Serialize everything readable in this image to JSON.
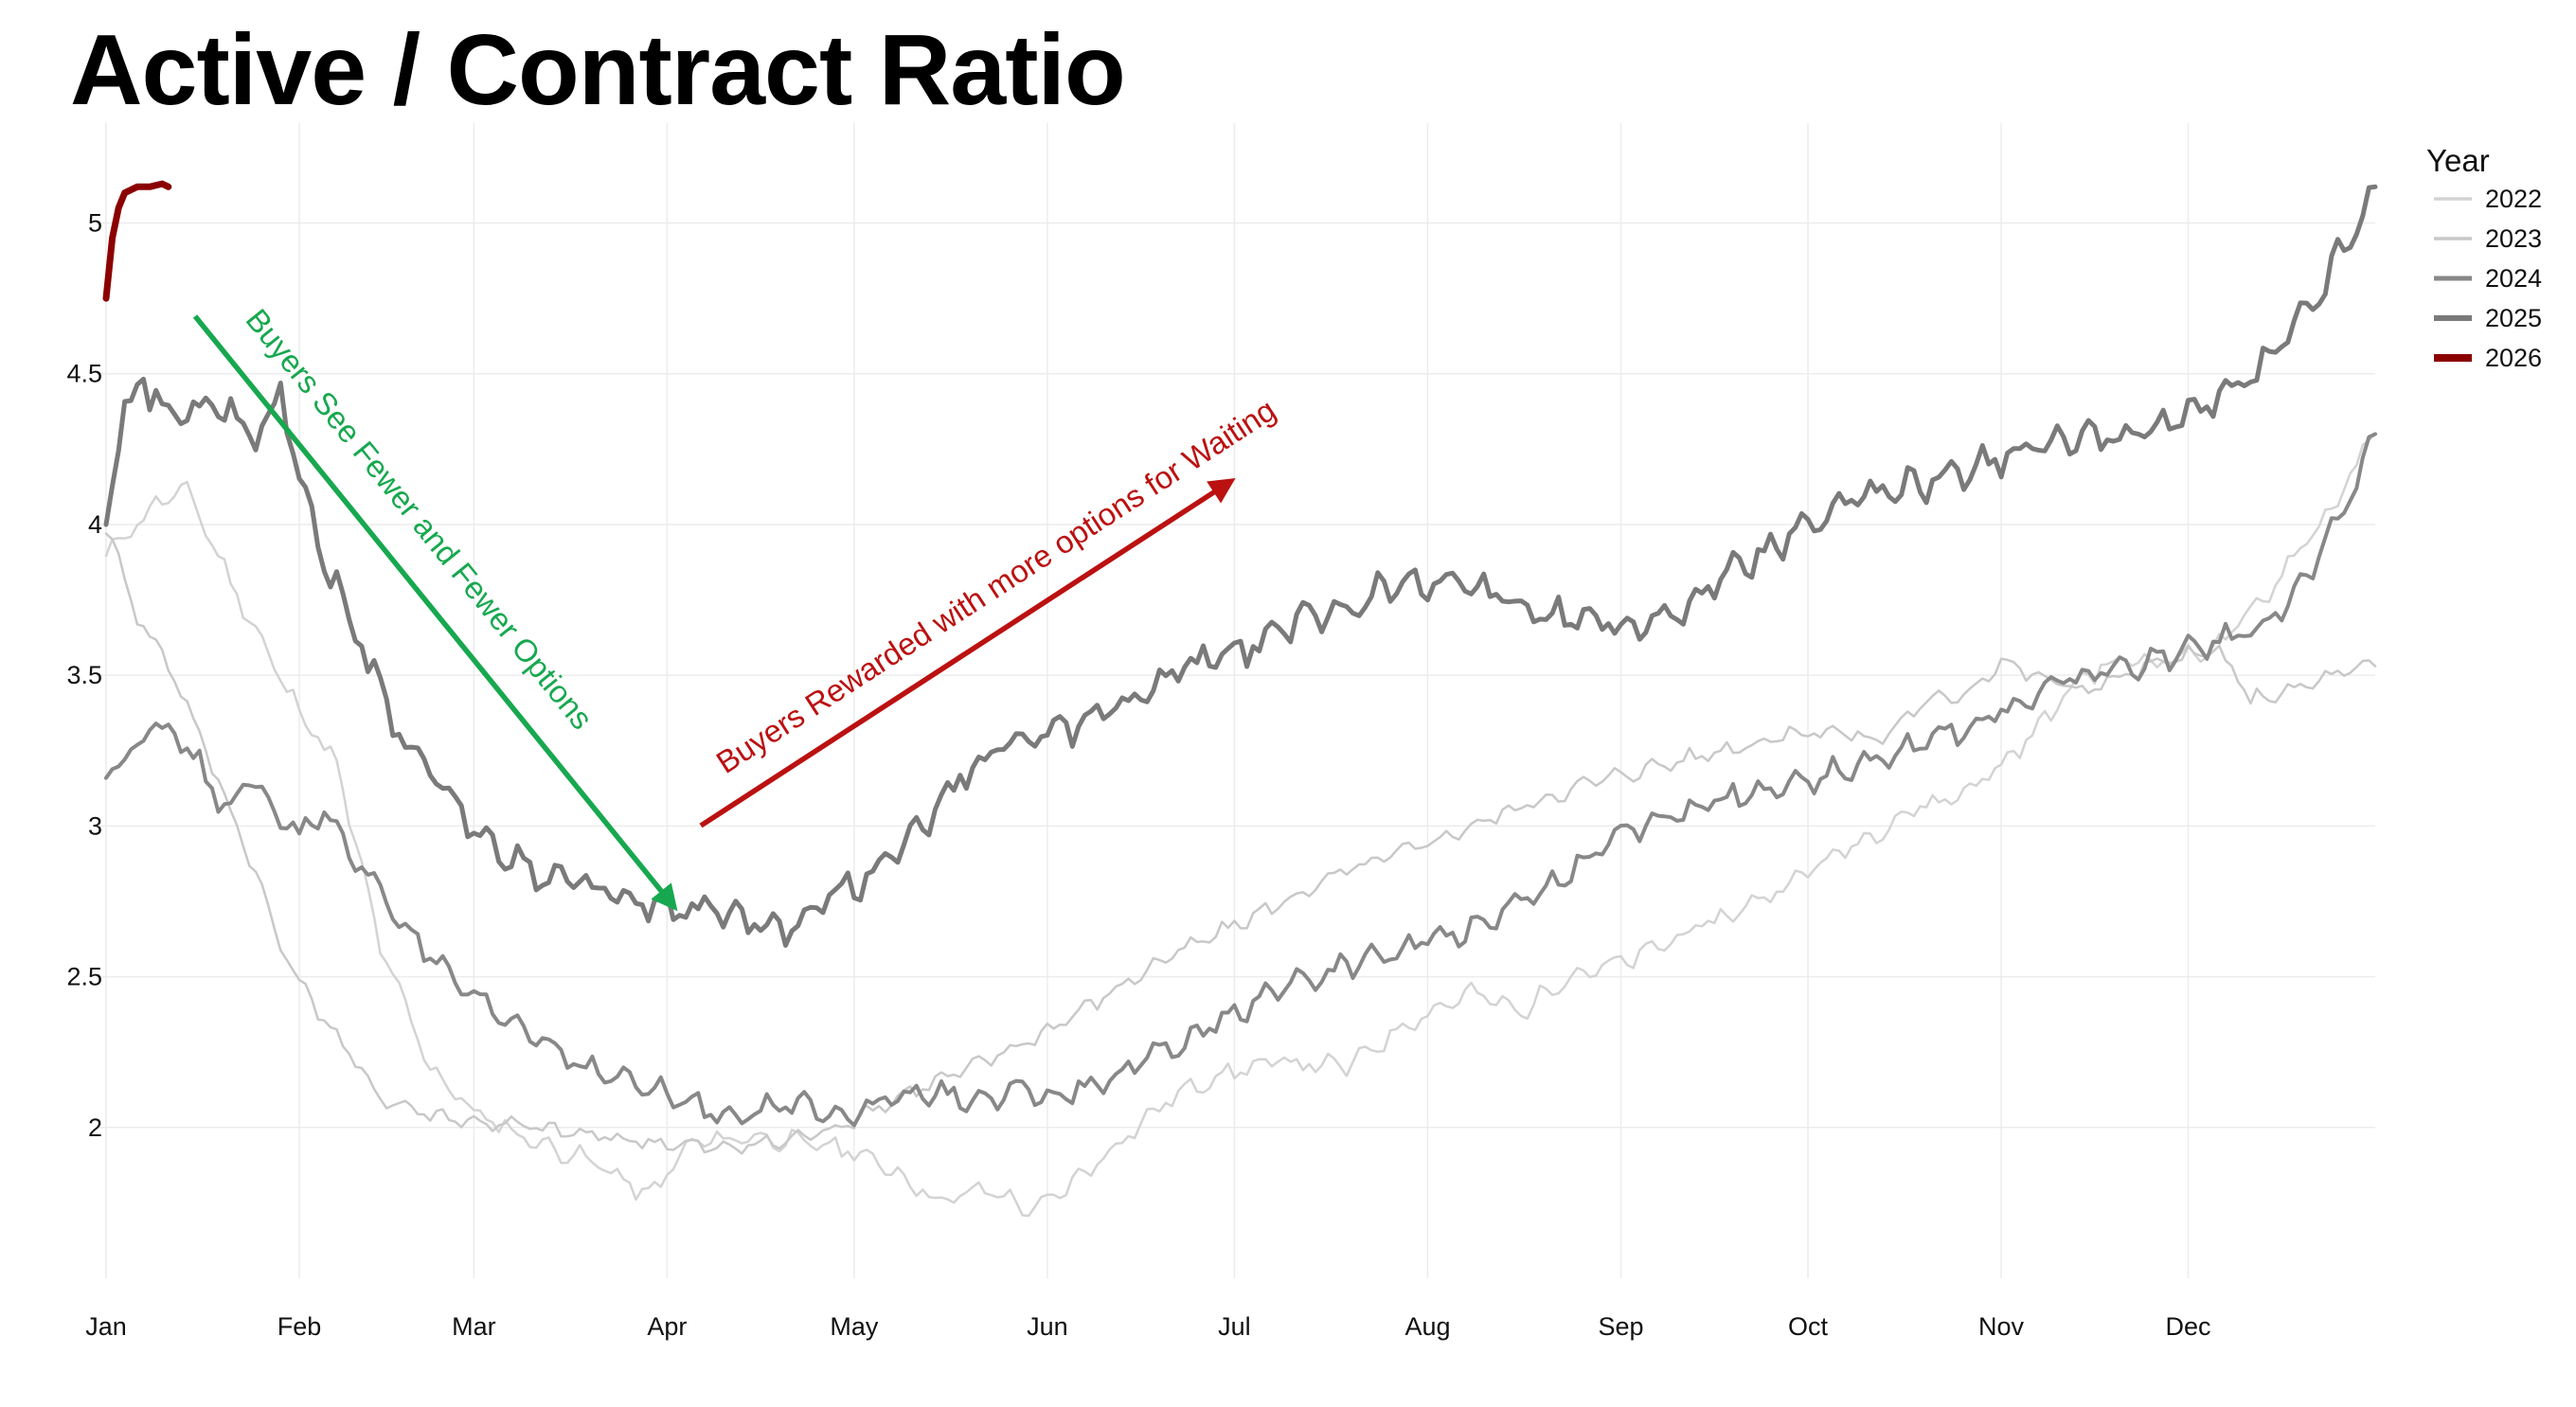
{
  "chart_data": {
    "type": "line",
    "title": "Active / Contract Ratio",
    "xlabel": "",
    "ylabel": "",
    "x_ticks": [
      "Jan",
      "Feb",
      "Mar",
      "Apr",
      "May",
      "Jun",
      "Jul",
      "Aug",
      "Sep",
      "Oct",
      "Nov",
      "Dec"
    ],
    "y_ticks": [
      2,
      2.5,
      3,
      3.5,
      4,
      4.5,
      5
    ],
    "y_tick_labels": [
      "2",
      "2.5",
      "3",
      "3.5",
      "4",
      "4.5",
      "5"
    ],
    "ylim": [
      1.5,
      5.3
    ],
    "x_unit": "day of year",
    "xlim": [
      1,
      365
    ],
    "grid": true,
    "legend_title": "Year",
    "legend_position": "right-top",
    "series": [
      {
        "name": "2022",
        "color": "#d3d3d3",
        "width": 2.5,
        "points": [
          [
            1,
            3.9
          ],
          [
            8,
            4.05
          ],
          [
            14,
            4.12
          ],
          [
            20,
            3.85
          ],
          [
            30,
            3.45
          ],
          [
            38,
            3.2
          ],
          [
            45,
            2.6
          ],
          [
            53,
            2.2
          ],
          [
            60,
            2.05
          ],
          [
            70,
            1.95
          ],
          [
            80,
            1.88
          ],
          [
            88,
            1.77
          ],
          [
            95,
            1.95
          ],
          [
            105,
            1.97
          ],
          [
            112,
            1.95
          ],
          [
            120,
            1.93
          ],
          [
            128,
            1.85
          ],
          [
            135,
            1.75
          ],
          [
            142,
            1.8
          ],
          [
            150,
            1.72
          ],
          [
            158,
            1.85
          ],
          [
            165,
            1.98
          ],
          [
            172,
            2.1
          ],
          [
            180,
            2.18
          ],
          [
            190,
            2.22
          ],
          [
            200,
            2.2
          ],
          [
            210,
            2.35
          ],
          [
            220,
            2.45
          ],
          [
            228,
            2.38
          ],
          [
            235,
            2.5
          ],
          [
            245,
            2.55
          ],
          [
            255,
            2.65
          ],
          [
            263,
            2.72
          ],
          [
            270,
            2.8
          ],
          [
            278,
            2.9
          ],
          [
            285,
            2.98
          ],
          [
            290,
            3.05
          ],
          [
            298,
            3.1
          ],
          [
            305,
            3.2
          ],
          [
            312,
            3.35
          ],
          [
            318,
            3.5
          ],
          [
            325,
            3.55
          ],
          [
            332,
            3.55
          ],
          [
            340,
            3.6
          ],
          [
            347,
            3.75
          ],
          [
            352,
            3.9
          ],
          [
            358,
            4.05
          ],
          [
            365,
            4.3
          ]
        ]
      },
      {
        "name": "2023",
        "color": "#c8c8c8",
        "width": 2.5,
        "points": [
          [
            1,
            4.0
          ],
          [
            6,
            3.7
          ],
          [
            12,
            3.5
          ],
          [
            18,
            3.2
          ],
          [
            24,
            2.9
          ],
          [
            30,
            2.55
          ],
          [
            38,
            2.3
          ],
          [
            45,
            2.1
          ],
          [
            52,
            2.05
          ],
          [
            60,
            2.02
          ],
          [
            70,
            2.0
          ],
          [
            80,
            1.97
          ],
          [
            90,
            1.95
          ],
          [
            100,
            1.93
          ],
          [
            108,
            1.95
          ],
          [
            115,
            1.98
          ],
          [
            120,
            2.02
          ],
          [
            130,
            2.12
          ],
          [
            140,
            2.2
          ],
          [
            150,
            2.3
          ],
          [
            160,
            2.42
          ],
          [
            170,
            2.55
          ],
          [
            180,
            2.65
          ],
          [
            190,
            2.75
          ],
          [
            200,
            2.85
          ],
          [
            210,
            2.92
          ],
          [
            220,
            3.0
          ],
          [
            230,
            3.08
          ],
          [
            240,
            3.15
          ],
          [
            250,
            3.2
          ],
          [
            260,
            3.25
          ],
          [
            270,
            3.3
          ],
          [
            278,
            3.32
          ],
          [
            285,
            3.28
          ],
          [
            292,
            3.4
          ],
          [
            300,
            3.45
          ],
          [
            305,
            3.55
          ],
          [
            310,
            3.5
          ],
          [
            318,
            3.45
          ],
          [
            325,
            3.5
          ],
          [
            332,
            3.55
          ],
          [
            340,
            3.58
          ],
          [
            345,
            3.42
          ],
          [
            352,
            3.45
          ],
          [
            358,
            3.5
          ],
          [
            365,
            3.53
          ]
        ]
      },
      {
        "name": "2024",
        "color": "#888888",
        "width": 4,
        "points": [
          [
            1,
            3.18
          ],
          [
            4,
            3.22
          ],
          [
            8,
            3.35
          ],
          [
            12,
            3.3
          ],
          [
            16,
            3.2
          ],
          [
            20,
            3.05
          ],
          [
            24,
            3.15
          ],
          [
            28,
            3.05
          ],
          [
            32,
            2.98
          ],
          [
            36,
            3.05
          ],
          [
            40,
            2.9
          ],
          [
            44,
            2.82
          ],
          [
            48,
            2.7
          ],
          [
            52,
            2.58
          ],
          [
            56,
            2.5
          ],
          [
            60,
            2.42
          ],
          [
            66,
            2.35
          ],
          [
            72,
            2.28
          ],
          [
            78,
            2.2
          ],
          [
            85,
            2.15
          ],
          [
            92,
            2.1
          ],
          [
            98,
            2.05
          ],
          [
            105,
            2.05
          ],
          [
            112,
            2.08
          ],
          [
            120,
            2.05
          ],
          [
            128,
            2.1
          ],
          [
            135,
            2.12
          ],
          [
            142,
            2.08
          ],
          [
            148,
            2.12
          ],
          [
            154,
            2.1
          ],
          [
            160,
            2.15
          ],
          [
            165,
            2.18
          ],
          [
            170,
            2.25
          ],
          [
            176,
            2.3
          ],
          [
            182,
            2.38
          ],
          [
            188,
            2.45
          ],
          [
            195,
            2.5
          ],
          [
            202,
            2.55
          ],
          [
            210,
            2.6
          ],
          [
            218,
            2.65
          ],
          [
            225,
            2.72
          ],
          [
            232,
            2.8
          ],
          [
            240,
            2.92
          ],
          [
            248,
            3.0
          ],
          [
            255,
            3.05
          ],
          [
            262,
            3.1
          ],
          [
            270,
            3.12
          ],
          [
            278,
            3.18
          ],
          [
            285,
            3.22
          ],
          [
            292,
            3.28
          ],
          [
            298,
            3.32
          ],
          [
            305,
            3.38
          ],
          [
            310,
            3.42
          ],
          [
            315,
            3.48
          ],
          [
            322,
            3.52
          ],
          [
            330,
            3.55
          ],
          [
            338,
            3.6
          ],
          [
            345,
            3.65
          ],
          [
            350,
            3.72
          ],
          [
            355,
            3.85
          ],
          [
            360,
            4.05
          ],
          [
            365,
            4.3
          ]
        ]
      },
      {
        "name": "2025",
        "color": "#7a7a7a",
        "width": 5,
        "points": [
          [
            1,
            4.05
          ],
          [
            4,
            4.35
          ],
          [
            7,
            4.48
          ],
          [
            10,
            4.38
          ],
          [
            14,
            4.35
          ],
          [
            18,
            4.4
          ],
          [
            22,
            4.35
          ],
          [
            26,
            4.3
          ],
          [
            29,
            4.45
          ],
          [
            32,
            4.18
          ],
          [
            35,
            3.95
          ],
          [
            38,
            3.8
          ],
          [
            42,
            3.6
          ],
          [
            46,
            3.4
          ],
          [
            50,
            3.25
          ],
          [
            54,
            3.15
          ],
          [
            58,
            3.05
          ],
          [
            62,
            2.95
          ],
          [
            66,
            2.9
          ],
          [
            70,
            2.85
          ],
          [
            74,
            2.82
          ],
          [
            78,
            2.8
          ],
          [
            82,
            2.78
          ],
          [
            86,
            2.75
          ],
          [
            90,
            2.73
          ],
          [
            94,
            2.72
          ],
          [
            98,
            2.72
          ],
          [
            102,
            2.7
          ],
          [
            106,
            2.68
          ],
          [
            110,
            2.65
          ],
          [
            114,
            2.72
          ],
          [
            118,
            2.78
          ],
          [
            122,
            2.82
          ],
          [
            126,
            2.88
          ],
          [
            130,
            2.95
          ],
          [
            134,
            3.05
          ],
          [
            138,
            3.15
          ],
          [
            142,
            3.22
          ],
          [
            146,
            3.28
          ],
          [
            150,
            3.3
          ],
          [
            154,
            3.32
          ],
          [
            158,
            3.35
          ],
          [
            162,
            3.38
          ],
          [
            166,
            3.42
          ],
          [
            170,
            3.48
          ],
          [
            174,
            3.52
          ],
          [
            178,
            3.55
          ],
          [
            182,
            3.58
          ],
          [
            186,
            3.6
          ],
          [
            190,
            3.65
          ],
          [
            194,
            3.7
          ],
          [
            198,
            3.72
          ],
          [
            202,
            3.75
          ],
          [
            206,
            3.78
          ],
          [
            210,
            3.8
          ],
          [
            214,
            3.82
          ],
          [
            218,
            3.8
          ],
          [
            222,
            3.78
          ],
          [
            226,
            3.75
          ],
          [
            230,
            3.72
          ],
          [
            234,
            3.7
          ],
          [
            238,
            3.7
          ],
          [
            242,
            3.68
          ],
          [
            246,
            3.65
          ],
          [
            250,
            3.68
          ],
          [
            254,
            3.72
          ],
          [
            258,
            3.78
          ],
          [
            262,
            3.85
          ],
          [
            266,
            3.9
          ],
          [
            270,
            3.95
          ],
          [
            274,
            4.0
          ],
          [
            278,
            4.05
          ],
          [
            282,
            4.08
          ],
          [
            286,
            4.1
          ],
          [
            290,
            4.12
          ],
          [
            294,
            4.15
          ],
          [
            298,
            4.18
          ],
          [
            302,
            4.2
          ],
          [
            306,
            4.22
          ],
          [
            310,
            4.25
          ],
          [
            314,
            4.28
          ],
          [
            318,
            4.3
          ],
          [
            322,
            4.28
          ],
          [
            326,
            4.3
          ],
          [
            330,
            4.32
          ],
          [
            334,
            4.35
          ],
          [
            338,
            4.4
          ],
          [
            342,
            4.45
          ],
          [
            346,
            4.5
          ],
          [
            350,
            4.6
          ],
          [
            354,
            4.7
          ],
          [
            358,
            4.85
          ],
          [
            362,
            4.98
          ],
          [
            365,
            5.12
          ]
        ]
      },
      {
        "name": "2026",
        "color": "#8b0000",
        "width": 7,
        "points": [
          [
            1,
            4.75
          ],
          [
            2,
            4.95
          ],
          [
            3,
            5.05
          ],
          [
            4,
            5.1
          ],
          [
            6,
            5.12
          ],
          [
            8,
            5.12
          ],
          [
            10,
            5.13
          ],
          [
            11,
            5.12
          ]
        ]
      }
    ],
    "annotations": [
      {
        "text": "Buyers See Fewer and Fewer Options",
        "color": "#17a84f"
      },
      {
        "text": "Buyers Rewarded with more options for Waiting",
        "color": "#bb1111"
      }
    ]
  }
}
